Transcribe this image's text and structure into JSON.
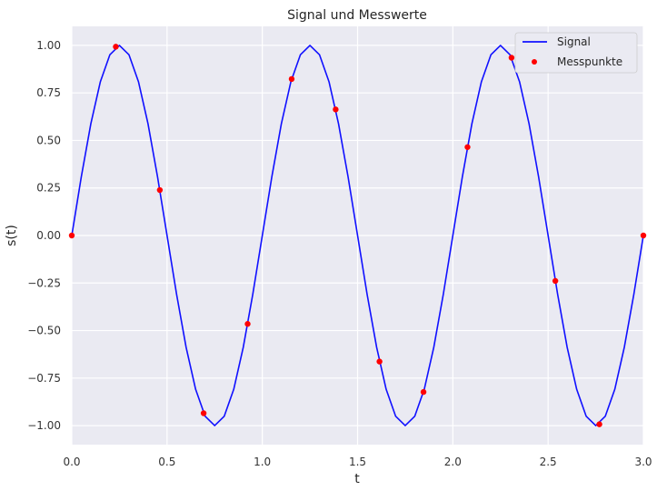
{
  "chart_data": {
    "type": "line",
    "title": "Signal und Messwerte",
    "xlabel": "t",
    "ylabel": "s(t)",
    "xlim": [
      0.0,
      3.0
    ],
    "ylim": [
      -1.1,
      1.1
    ],
    "xticks": [
      0.0,
      0.5,
      1.0,
      1.5,
      2.0,
      2.5,
      3.0
    ],
    "xtick_labels": [
      "0.0",
      "0.5",
      "1.0",
      "1.5",
      "2.0",
      "2.5",
      "3.0"
    ],
    "yticks": [
      1.0,
      0.75,
      0.5,
      0.25,
      0.0,
      -0.25,
      -0.5,
      -0.75,
      -1.0
    ],
    "ytick_labels": [
      "1.00",
      "0.75",
      "0.50",
      "0.25",
      "0.00",
      "−0.25",
      "−0.50",
      "−0.75",
      "−1.00"
    ],
    "grid": true,
    "legend_position": "top-right",
    "series": [
      {
        "name": "Signal",
        "kind": "line",
        "color": "#1010ff",
        "x": [
          0.0,
          0.05,
          0.1,
          0.15,
          0.2,
          0.25,
          0.3,
          0.35,
          0.4,
          0.45,
          0.5,
          0.55,
          0.6,
          0.65,
          0.7,
          0.75,
          0.8,
          0.85,
          0.9,
          0.95,
          1.0,
          1.05,
          1.1,
          1.15,
          1.2,
          1.25,
          1.3,
          1.35,
          1.4,
          1.45,
          1.5,
          1.55,
          1.6,
          1.65,
          1.7,
          1.75,
          1.8,
          1.85,
          1.9,
          1.95,
          2.0,
          2.05,
          2.1,
          2.15,
          2.2,
          2.25,
          2.3,
          2.35,
          2.4,
          2.45,
          2.5,
          2.55,
          2.6,
          2.65,
          2.7,
          2.75,
          2.8,
          2.85,
          2.9,
          2.95,
          3.0
        ],
        "y": [
          0.0,
          0.309,
          0.588,
          0.809,
          0.951,
          1.0,
          0.951,
          0.809,
          0.588,
          0.309,
          0.0,
          -0.309,
          -0.588,
          -0.809,
          -0.951,
          -1.0,
          -0.951,
          -0.809,
          -0.588,
          -0.309,
          0.0,
          0.309,
          0.588,
          0.809,
          0.951,
          1.0,
          0.951,
          0.809,
          0.588,
          0.309,
          0.0,
          -0.309,
          -0.588,
          -0.809,
          -0.951,
          -1.0,
          -0.951,
          -0.809,
          -0.588,
          -0.309,
          0.0,
          0.309,
          0.588,
          0.809,
          0.951,
          1.0,
          0.951,
          0.809,
          0.588,
          0.309,
          0.0,
          -0.309,
          -0.588,
          -0.809,
          -0.951,
          -1.0,
          -0.951,
          -0.809,
          -0.588,
          -0.309,
          0.0
        ]
      },
      {
        "name": "Messpunkte",
        "kind": "scatter",
        "color": "#ff0000",
        "x": [
          0.0,
          0.231,
          0.462,
          0.692,
          0.923,
          1.154,
          1.385,
          1.615,
          1.846,
          2.077,
          2.308,
          2.538,
          2.769,
          3.0
        ],
        "y": [
          0.0,
          0.993,
          0.239,
          -0.935,
          -0.465,
          0.823,
          0.663,
          -0.663,
          -0.823,
          0.465,
          0.935,
          -0.239,
          -0.993,
          0.0
        ]
      }
    ]
  }
}
